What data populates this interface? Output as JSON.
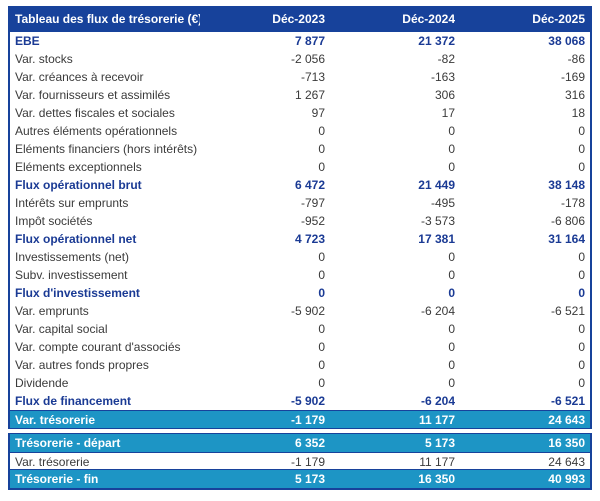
{
  "header": {
    "title": "Tableau des flux de trésorerie (€)",
    "columns": [
      "Déc-2023",
      "Déc-2024",
      "Déc-2025"
    ]
  },
  "rows": [
    {
      "label": "EBE",
      "values": [
        "7 877",
        "21 372",
        "38 068"
      ],
      "style": "bold"
    },
    {
      "label": "Var. stocks",
      "values": [
        "-2 056",
        "-82",
        "-86"
      ],
      "style": "normal"
    },
    {
      "label": "Var. créances à recevoir",
      "values": [
        "-713",
        "-163",
        "-169"
      ],
      "style": "normal"
    },
    {
      "label": "Var. fournisseurs et assimilés",
      "values": [
        "1 267",
        "306",
        "316"
      ],
      "style": "normal"
    },
    {
      "label": "Var. dettes fiscales et sociales",
      "values": [
        "97",
        "17",
        "18"
      ],
      "style": "normal"
    },
    {
      "label": "Autres éléments opérationnels",
      "values": [
        "0",
        "0",
        "0"
      ],
      "style": "normal"
    },
    {
      "label": "Eléments financiers (hors intérêts)",
      "values": [
        "0",
        "0",
        "0"
      ],
      "style": "normal"
    },
    {
      "label": "Eléments exceptionnels",
      "values": [
        "0",
        "0",
        "0"
      ],
      "style": "normal"
    },
    {
      "label": "Flux opérationnel brut",
      "values": [
        "6 472",
        "21 449",
        "38 148"
      ],
      "style": "bold"
    },
    {
      "label": "Intérêts sur emprunts",
      "values": [
        "-797",
        "-495",
        "-178"
      ],
      "style": "normal"
    },
    {
      "label": "Impôt sociétés",
      "values": [
        "-952",
        "-3 573",
        "-6 806"
      ],
      "style": "normal"
    },
    {
      "label": "Flux opérationnel net",
      "values": [
        "4 723",
        "17 381",
        "31 164"
      ],
      "style": "bold"
    },
    {
      "label": "Investissements (net)",
      "values": [
        "0",
        "0",
        "0"
      ],
      "style": "normal"
    },
    {
      "label": "Subv. investissement",
      "values": [
        "0",
        "0",
        "0"
      ],
      "style": "normal"
    },
    {
      "label": "Flux d'investissement",
      "values": [
        "0",
        "0",
        "0"
      ],
      "style": "bold"
    },
    {
      "label": "Var. emprunts",
      "values": [
        "-5 902",
        "-6 204",
        "-6 521"
      ],
      "style": "normal"
    },
    {
      "label": "Var. capital social",
      "values": [
        "0",
        "0",
        "0"
      ],
      "style": "normal"
    },
    {
      "label": "Var. compte courant d'associés",
      "values": [
        "0",
        "0",
        "0"
      ],
      "style": "normal"
    },
    {
      "label": "Var. autres fonds propres",
      "values": [
        "0",
        "0",
        "0"
      ],
      "style": "normal"
    },
    {
      "label": "Dividende",
      "values": [
        "0",
        "0",
        "0"
      ],
      "style": "normal"
    },
    {
      "label": "Flux de financement",
      "values": [
        "-5 902",
        "-6 204",
        "-6 521"
      ],
      "style": "bold"
    },
    {
      "label": "Var. trésorerie",
      "values": [
        "-1 179",
        "11 177",
        "24 643"
      ],
      "style": "highlight"
    }
  ],
  "treasury_rows": [
    {
      "label": "Trésorerie - départ",
      "values": [
        "6 352",
        "5 173",
        "16 350"
      ],
      "style": "highlight"
    },
    {
      "label": "Var. trésorerie",
      "values": [
        "-1 179",
        "11 177",
        "24 643"
      ],
      "style": "normal"
    },
    {
      "label": "Trésorerie - fin",
      "values": [
        "5 173",
        "16 350",
        "40 993"
      ],
      "style": "highlight"
    }
  ],
  "colors": {
    "navy": "#17429B",
    "cyan": "#1D95C5",
    "text": "#3A3A3A",
    "bold_text": "#1A3A94"
  }
}
